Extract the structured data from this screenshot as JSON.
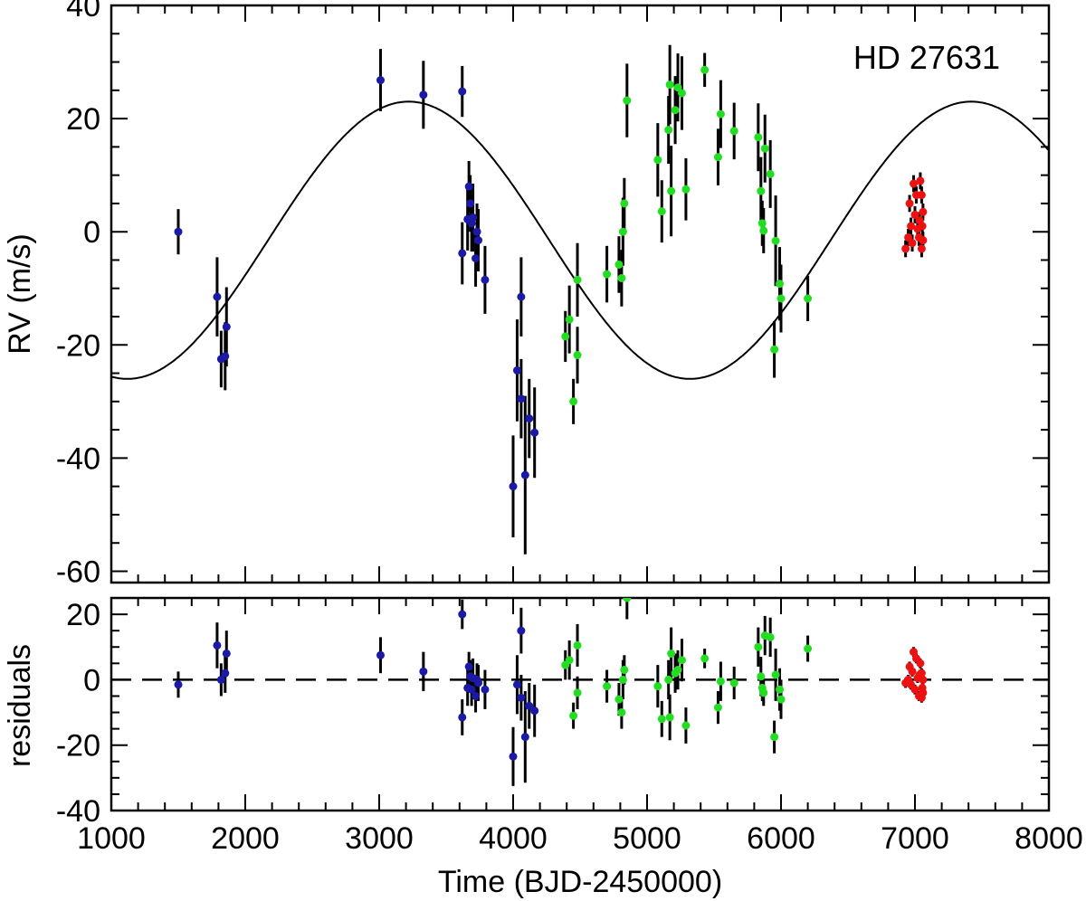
{
  "chart_data": [
    {
      "type": "scatter",
      "panel": "top",
      "title": "",
      "annotation": "HD 27631",
      "xlabel": "",
      "ylabel": "RV (m/s)",
      "xlim": [
        1000,
        8000
      ],
      "ylim": [
        -62,
        40
      ],
      "x_ticks": [
        1000,
        2000,
        3000,
        4000,
        5000,
        6000,
        7000,
        8000
      ],
      "y_ticks": [
        -60,
        -40,
        -20,
        0,
        20,
        40
      ],
      "y_tick_labels": [
        "-60",
        "-40",
        "-20",
        "0",
        "20",
        "40"
      ],
      "model": {
        "type": "sinusoid",
        "period": 4200,
        "amplitude": 24.5,
        "offset": -1.5,
        "peak_time": 3220,
        "color": "#000000"
      },
      "series": [
        {
          "color": "#1a1aa6",
          "points": [
            [
              1500,
              0,
              4
            ],
            [
              1790,
              -11.5,
              7
            ],
            [
              1820,
              -22.5,
              5
            ],
            [
              1850,
              -22,
              6
            ],
            [
              1860,
              -16.8,
              7
            ],
            [
              3010,
              26.8,
              5.5
            ],
            [
              3330,
              24.2,
              6
            ],
            [
              3620,
              24.8,
              4.5
            ],
            [
              3620,
              -3.8,
              5.5
            ],
            [
              3660,
              2.2,
              5.5
            ],
            [
              3670,
              8,
              4.5
            ],
            [
              3680,
              5,
              5
            ],
            [
              3690,
              1.5,
              5
            ],
            [
              3700,
              2.5,
              6
            ],
            [
              3720,
              -4.7,
              5
            ],
            [
              3730,
              0,
              5
            ],
            [
              3740,
              -1.5,
              5.5
            ],
            [
              3790,
              -8.5,
              6
            ],
            [
              4000,
              -45,
              9
            ],
            [
              4030,
              -24.5,
              9
            ],
            [
              4060,
              -11.5,
              7
            ],
            [
              4060,
              -29.5,
              7
            ],
            [
              4090,
              -43,
              14
            ],
            [
              4120,
              -33,
              7
            ],
            [
              4160,
              -35.5,
              8
            ]
          ]
        },
        {
          "color": "#22dd22",
          "points": [
            [
              4390,
              -18.5,
              4.5
            ],
            [
              4420,
              -15.5,
              6
            ],
            [
              4450,
              -30,
              4
            ],
            [
              4480,
              -21.8,
              5
            ],
            [
              4480,
              -8.5,
              6.5
            ],
            [
              4700,
              -7.5,
              5
            ],
            [
              4790,
              -5.8,
              5
            ],
            [
              4810,
              -8.2,
              5
            ],
            [
              4820,
              0,
              6
            ],
            [
              4830,
              5,
              4.5
            ],
            [
              4850,
              23.2,
              6.5
            ],
            [
              5080,
              12.7,
              6.5
            ],
            [
              5110,
              3.6,
              5.5
            ],
            [
              5160,
              18,
              6
            ],
            [
              5170,
              26,
              7
            ],
            [
              5180,
              7.2,
              8
            ],
            [
              5210,
              21.5,
              6
            ],
            [
              5230,
              25.5,
              6
            ],
            [
              5260,
              24.5,
              6.5
            ],
            [
              5290,
              7.5,
              5.5
            ],
            [
              5430,
              28.6,
              3
            ],
            [
              5530,
              13.2,
              5
            ],
            [
              5550,
              20.8,
              6
            ],
            [
              5650,
              17.8,
              5
            ],
            [
              5830,
              16.7,
              6
            ],
            [
              5850,
              7.2,
              6
            ],
            [
              5860,
              1.5,
              4
            ],
            [
              5870,
              0.2,
              4
            ],
            [
              5880,
              14.7,
              6
            ],
            [
              5920,
              10.2,
              6
            ],
            [
              5950,
              -20.8,
              5
            ],
            [
              5960,
              -1.6,
              8
            ],
            [
              5990,
              -9.2,
              6.5
            ],
            [
              6000,
              -11.8,
              6
            ],
            [
              6200,
              -11.8,
              4
            ]
          ]
        },
        {
          "color": "#ee1111",
          "points": [
            [
              6930,
              -3,
              1.5
            ],
            [
              6950,
              -1,
              1.5
            ],
            [
              6960,
              5,
              1.5
            ],
            [
              6970,
              1,
              1.5
            ],
            [
              6980,
              -2,
              1.5
            ],
            [
              6990,
              8.5,
              1.5
            ],
            [
              7000,
              3,
              1.5
            ],
            [
              7010,
              6.5,
              1.5
            ],
            [
              7020,
              0.5,
              1.5
            ],
            [
              7030,
              -1,
              1.5
            ],
            [
              7035,
              2,
              1.5
            ],
            [
              7040,
              9,
              1.5
            ],
            [
              7050,
              6.5,
              1.5
            ],
            [
              7050,
              -3,
              1.5
            ],
            [
              7055,
              1,
              1.5
            ],
            [
              7060,
              3.5,
              1.5
            ],
            [
              7060,
              -1.5,
              1.5
            ]
          ]
        }
      ]
    },
    {
      "type": "scatter",
      "panel": "bottom",
      "xlabel": "Time (BJD-2450000)",
      "ylabel": "residuals",
      "xlim": [
        1000,
        8000
      ],
      "ylim": [
        -40,
        25
      ],
      "x_ticks": [
        1000,
        2000,
        3000,
        4000,
        5000,
        6000,
        7000,
        8000
      ],
      "x_tick_labels": [
        "1000",
        "2000",
        "3000",
        "4000",
        "5000",
        "6000",
        "7000",
        "8000"
      ],
      "y_ticks": [
        -40,
        -20,
        0,
        20
      ],
      "y_tick_labels": [
        "-40",
        "-20",
        "0",
        "20"
      ],
      "zero_line": {
        "y": 0,
        "style": "dashed",
        "color": "#000000"
      },
      "series": [
        {
          "color": "#1a1aa6",
          "points": [
            [
              1500,
              -1.5,
              4
            ],
            [
              1790,
              10.5,
              7
            ],
            [
              1820,
              0,
              5
            ],
            [
              1850,
              2,
              6
            ],
            [
              1860,
              8,
              7
            ],
            [
              3010,
              7.5,
              5.5
            ],
            [
              3330,
              2.5,
              6
            ],
            [
              3620,
              20,
              4.5
            ],
            [
              3620,
              -11.5,
              5.5
            ],
            [
              3660,
              -2.5,
              5.5
            ],
            [
              3670,
              4,
              4.5
            ],
            [
              3680,
              1,
              5
            ],
            [
              3690,
              -3,
              5
            ],
            [
              3700,
              0.5,
              6
            ],
            [
              3720,
              -5,
              5
            ],
            [
              3730,
              0,
              5
            ],
            [
              3740,
              -1,
              5.5
            ],
            [
              3790,
              -3,
              6
            ],
            [
              4000,
              -23.5,
              9
            ],
            [
              4030,
              -1.5,
              9
            ],
            [
              4060,
              15,
              7
            ],
            [
              4060,
              -5.5,
              7
            ],
            [
              4090,
              -17.5,
              14
            ],
            [
              4120,
              -8,
              7
            ],
            [
              4160,
              -9.5,
              8
            ]
          ]
        },
        {
          "color": "#22dd22",
          "points": [
            [
              4390,
              4.5,
              4.5
            ],
            [
              4420,
              6,
              6
            ],
            [
              4450,
              -11,
              4
            ],
            [
              4480,
              -4,
              5
            ],
            [
              4480,
              10.5,
              6.5
            ],
            [
              4700,
              -2,
              5
            ],
            [
              4790,
              -6,
              5
            ],
            [
              4810,
              -10,
              5
            ],
            [
              4820,
              0,
              6
            ],
            [
              4830,
              3,
              4.5
            ],
            [
              4850,
              25,
              6.5
            ],
            [
              5080,
              -2,
              6.5
            ],
            [
              5110,
              -12,
              5.5
            ],
            [
              5160,
              0,
              6
            ],
            [
              5170,
              -11.5,
              7
            ],
            [
              5180,
              8,
              8
            ],
            [
              5210,
              2,
              6
            ],
            [
              5230,
              3,
              6
            ],
            [
              5260,
              6,
              6.5
            ],
            [
              5290,
              -14,
              5.5
            ],
            [
              5430,
              6.5,
              3
            ],
            [
              5530,
              -8.5,
              5
            ],
            [
              5550,
              -0.5,
              6
            ],
            [
              5650,
              -1,
              5
            ],
            [
              5830,
              10,
              6
            ],
            [
              5850,
              1,
              6
            ],
            [
              5860,
              -2.5,
              4
            ],
            [
              5870,
              -4,
              4
            ],
            [
              5880,
              13.5,
              6
            ],
            [
              5920,
              13,
              6
            ],
            [
              5950,
              -17.5,
              5
            ],
            [
              5960,
              1.5,
              8
            ],
            [
              5990,
              -3,
              6.5
            ],
            [
              6000,
              -6,
              6
            ],
            [
              6200,
              9.5,
              4
            ]
          ]
        },
        {
          "color": "#ee1111",
          "points": [
            [
              6930,
              -1,
              1.5
            ],
            [
              6950,
              0,
              1.5
            ],
            [
              6960,
              4,
              1.5
            ],
            [
              6970,
              -1.5,
              1.5
            ],
            [
              6980,
              2.5,
              1.5
            ],
            [
              6990,
              8.5,
              1.5
            ],
            [
              7000,
              -3,
              1.5
            ],
            [
              7010,
              6.5,
              1.5
            ],
            [
              7020,
              0.5,
              1.5
            ],
            [
              7030,
              -5,
              1.5
            ],
            [
              7035,
              1.5,
              1.5
            ],
            [
              7040,
              5,
              1.5
            ],
            [
              7050,
              2,
              1.5
            ],
            [
              7050,
              -5.5,
              1.5
            ],
            [
              7055,
              -2.5,
              1.5
            ],
            [
              7060,
              0,
              1.5
            ],
            [
              7060,
              -4,
              1.5
            ]
          ]
        }
      ]
    }
  ]
}
